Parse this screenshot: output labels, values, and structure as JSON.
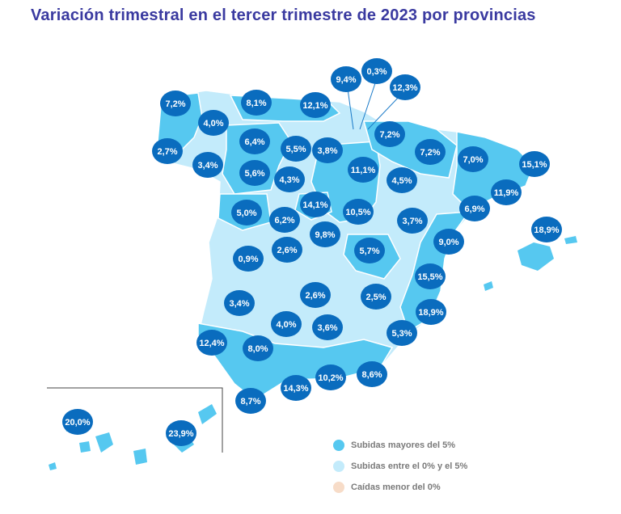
{
  "title": "Variación trimestral en el tercer trimestre de 2023 por provincias",
  "colors": {
    "high": "#56c8f0",
    "mid": "#c3ebfb",
    "negative": "#f7dcc8",
    "badge": "#0a6cbe",
    "title": "#3a3aa0"
  },
  "legend": [
    {
      "label": "Subidas mayores del 5%",
      "category": "high"
    },
    {
      "label": "Subidas entre el 0% y el 5%",
      "category": "mid"
    },
    {
      "label": "Caídas menor del 0%",
      "category": "negative"
    }
  ],
  "provinces": [
    {
      "label": "7,2%",
      "cat": "high"
    },
    {
      "label": "8,1%",
      "cat": "high"
    },
    {
      "label": "12,1%",
      "cat": "high"
    },
    {
      "label": "9,4%",
      "cat": "high"
    },
    {
      "label": "0,3%",
      "cat": "mid"
    },
    {
      "label": "12,3%",
      "cat": "high"
    },
    {
      "label": "4,0%",
      "cat": "mid"
    },
    {
      "label": "2,7%",
      "cat": "mid"
    },
    {
      "label": "3,4%",
      "cat": "mid"
    },
    {
      "label": "6,4%",
      "cat": "high"
    },
    {
      "label": "5,5%",
      "cat": "high"
    },
    {
      "label": "3,8%",
      "cat": "mid"
    },
    {
      "label": "7,2%",
      "cat": "high"
    },
    {
      "label": "7,2%",
      "cat": "high"
    },
    {
      "label": "7,0%",
      "cat": "high"
    },
    {
      "label": "15,1%",
      "cat": "high"
    },
    {
      "label": "5,6%",
      "cat": "high"
    },
    {
      "label": "4,3%",
      "cat": "mid"
    },
    {
      "label": "11,1%",
      "cat": "high"
    },
    {
      "label": "4,5%",
      "cat": "mid"
    },
    {
      "label": "11,9%",
      "cat": "high"
    },
    {
      "label": "5,0%",
      "cat": "high"
    },
    {
      "label": "14,1%",
      "cat": "high"
    },
    {
      "label": "6,2%",
      "cat": "high"
    },
    {
      "label": "10,5%",
      "cat": "high"
    },
    {
      "label": "3,7%",
      "cat": "mid"
    },
    {
      "label": "6,9%",
      "cat": "high"
    },
    {
      "label": "9,8%",
      "cat": "high"
    },
    {
      "label": "18,9%",
      "cat": "high"
    },
    {
      "label": "2,6%",
      "cat": "mid"
    },
    {
      "label": "9,0%",
      "cat": "high"
    },
    {
      "label": "0,9%",
      "cat": "mid"
    },
    {
      "label": "5,7%",
      "cat": "high"
    },
    {
      "label": "15,5%",
      "cat": "high"
    },
    {
      "label": "3,4%",
      "cat": "mid"
    },
    {
      "label": "2,6%",
      "cat": "mid"
    },
    {
      "label": "2,5%",
      "cat": "mid"
    },
    {
      "label": "18,9%",
      "cat": "high"
    },
    {
      "label": "4,0%",
      "cat": "mid"
    },
    {
      "label": "3,6%",
      "cat": "mid"
    },
    {
      "label": "12,4%",
      "cat": "high"
    },
    {
      "label": "8,0%",
      "cat": "high"
    },
    {
      "label": "5,3%",
      "cat": "high"
    },
    {
      "label": "10,2%",
      "cat": "high"
    },
    {
      "label": "8,6%",
      "cat": "high"
    },
    {
      "label": "14,3%",
      "cat": "high"
    },
    {
      "label": "8,7%",
      "cat": "high"
    },
    {
      "label": "20,0%",
      "cat": "high"
    },
    {
      "label": "23,9%",
      "cat": "high"
    }
  ]
}
